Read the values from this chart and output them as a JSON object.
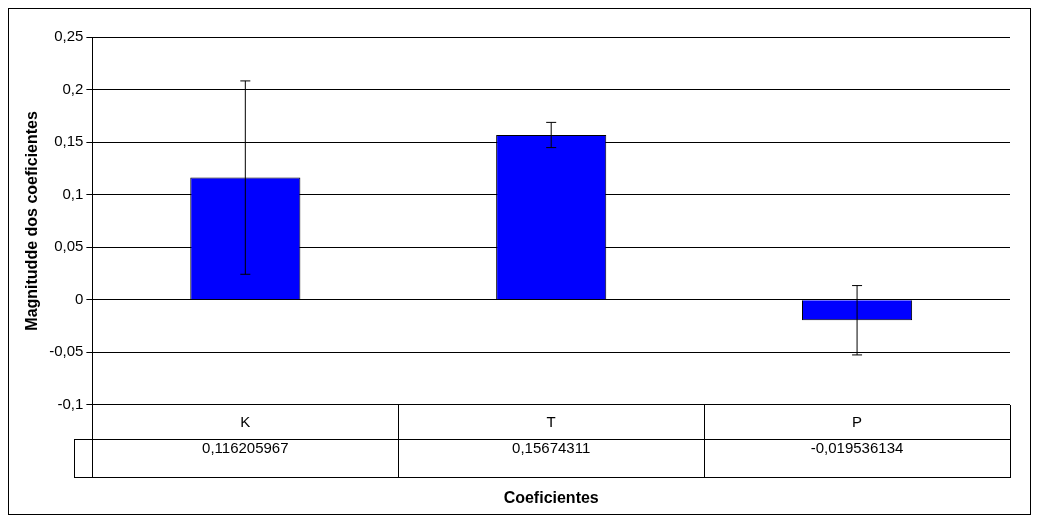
{
  "chart_data": {
    "type": "bar",
    "xlabel": "Coeficientes",
    "ylabel": "Magnitudde dos coeficientes",
    "categories": [
      "K",
      "T",
      "P"
    ],
    "values": [
      0.116205967,
      0.15674311,
      -0.019536134
    ],
    "value_labels": [
      "0,116205967",
      "0,15674311",
      "-0,019536134"
    ],
    "errors": [
      0.092,
      0.012,
      0.033
    ],
    "color": "#0000ff",
    "ylim": [
      -0.1,
      0.25
    ],
    "yticks": [
      {
        "value": -0.1,
        "label": "-0,1"
      },
      {
        "value": -0.05,
        "label": "-0,05"
      },
      {
        "value": 0,
        "label": "0"
      },
      {
        "value": 0.05,
        "label": "0,05"
      },
      {
        "value": 0.1,
        "label": "0,1"
      },
      {
        "value": 0.15,
        "label": "0,15"
      },
      {
        "value": 0.2,
        "label": "0,2"
      },
      {
        "value": 0.25,
        "label": "0,25"
      }
    ],
    "grid": "y",
    "legend": false
  }
}
